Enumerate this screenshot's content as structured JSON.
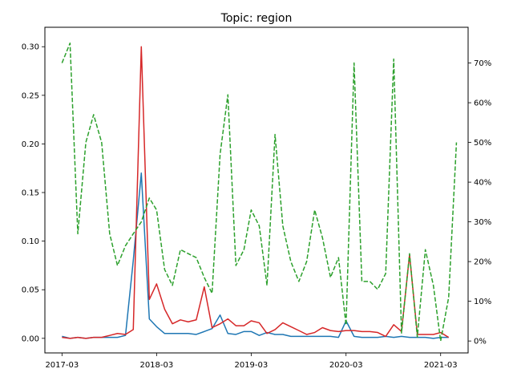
{
  "chart_data": {
    "type": "line",
    "title": "Topic: region",
    "xlabel": "",
    "ylabel_left": "",
    "ylabel_right": "",
    "grid": false,
    "legend": "none",
    "x_range": [
      "2016-12-25",
      "2021-06-15"
    ],
    "ylim_left": [
      -0.015,
      0.32
    ],
    "ylim_right": [
      -0.03,
      0.79
    ],
    "x_ticks": [
      {
        "date": "2017-03-01",
        "label": "2017-03"
      },
      {
        "date": "2018-03-01",
        "label": "2018-03"
      },
      {
        "date": "2019-03-01",
        "label": "2019-03"
      },
      {
        "date": "2020-03-01",
        "label": "2020-03"
      },
      {
        "date": "2021-03-01",
        "label": "2021-03"
      }
    ],
    "y_ticks_left": [
      {
        "value": 0.0,
        "label": "0.00"
      },
      {
        "value": 0.05,
        "label": "0.05"
      },
      {
        "value": 0.1,
        "label": "0.10"
      },
      {
        "value": 0.15,
        "label": "0.15"
      },
      {
        "value": 0.2,
        "label": "0.20"
      },
      {
        "value": 0.25,
        "label": "0.25"
      },
      {
        "value": 0.3,
        "label": "0.30"
      }
    ],
    "y_ticks_right": [
      {
        "value": 0.0,
        "label": "0%"
      },
      {
        "value": 0.1,
        "label": "10%"
      },
      {
        "value": 0.2,
        "label": "20%"
      },
      {
        "value": 0.3,
        "label": "30%"
      },
      {
        "value": 0.4,
        "label": "40%"
      },
      {
        "value": 0.5,
        "label": "50%"
      },
      {
        "value": 0.6,
        "label": "60%"
      },
      {
        "value": 0.7,
        "label": "70%"
      }
    ],
    "series": [
      {
        "axis": "left",
        "color": "#1f77b4",
        "style": "solid",
        "points": [
          [
            "2017-03-01",
            0.002
          ],
          [
            "2017-04-01",
            0.0
          ],
          [
            "2017-05-01",
            0.001
          ],
          [
            "2017-06-01",
            0.0
          ],
          [
            "2017-07-01",
            0.001
          ],
          [
            "2017-08-01",
            0.001
          ],
          [
            "2017-09-01",
            0.001
          ],
          [
            "2017-10-01",
            0.001
          ],
          [
            "2017-11-01",
            0.003
          ],
          [
            "2017-12-01",
            0.08
          ],
          [
            "2018-01-01",
            0.17
          ],
          [
            "2018-02-01",
            0.02
          ],
          [
            "2018-03-01",
            0.012
          ],
          [
            "2018-04-01",
            0.005
          ],
          [
            "2018-05-01",
            0.005
          ],
          [
            "2018-06-01",
            0.005
          ],
          [
            "2018-07-01",
            0.005
          ],
          [
            "2018-08-01",
            0.004
          ],
          [
            "2018-09-01",
            0.007
          ],
          [
            "2018-10-01",
            0.01
          ],
          [
            "2018-11-01",
            0.024
          ],
          [
            "2018-12-01",
            0.005
          ],
          [
            "2019-01-01",
            0.004
          ],
          [
            "2019-02-01",
            0.007
          ],
          [
            "2019-03-01",
            0.007
          ],
          [
            "2019-04-01",
            0.003
          ],
          [
            "2019-05-01",
            0.006
          ],
          [
            "2019-06-01",
            0.004
          ],
          [
            "2019-07-01",
            0.004
          ],
          [
            "2019-08-01",
            0.002
          ],
          [
            "2019-09-01",
            0.002
          ],
          [
            "2019-10-01",
            0.002
          ],
          [
            "2019-11-01",
            0.002
          ],
          [
            "2019-12-01",
            0.002
          ],
          [
            "2020-01-01",
            0.002
          ],
          [
            "2020-02-01",
            0.001
          ],
          [
            "2020-03-01",
            0.018
          ],
          [
            "2020-04-01",
            0.002
          ],
          [
            "2020-05-01",
            0.001
          ],
          [
            "2020-06-01",
            0.001
          ],
          [
            "2020-07-01",
            0.001
          ],
          [
            "2020-08-01",
            0.002
          ],
          [
            "2020-09-01",
            0.001
          ],
          [
            "2020-10-01",
            0.002
          ],
          [
            "2020-11-01",
            0.001
          ],
          [
            "2020-12-01",
            0.001
          ],
          [
            "2021-01-01",
            0.001
          ],
          [
            "2021-02-01",
            0.0
          ],
          [
            "2021-03-01",
            0.001
          ],
          [
            "2021-04-01",
            0.001
          ]
        ]
      },
      {
        "axis": "left",
        "color": "#d62728",
        "style": "solid",
        "points": [
          [
            "2017-03-01",
            0.001
          ],
          [
            "2017-04-01",
            0.0
          ],
          [
            "2017-05-01",
            0.001
          ],
          [
            "2017-06-01",
            0.0
          ],
          [
            "2017-07-01",
            0.001
          ],
          [
            "2017-08-01",
            0.001
          ],
          [
            "2017-09-01",
            0.003
          ],
          [
            "2017-10-01",
            0.005
          ],
          [
            "2017-11-01",
            0.004
          ],
          [
            "2017-12-01",
            0.009
          ],
          [
            "2018-01-01",
            0.3
          ],
          [
            "2018-02-01",
            0.04
          ],
          [
            "2018-03-01",
            0.056
          ],
          [
            "2018-04-01",
            0.03
          ],
          [
            "2018-05-01",
            0.015
          ],
          [
            "2018-06-01",
            0.019
          ],
          [
            "2018-07-01",
            0.017
          ],
          [
            "2018-08-01",
            0.019
          ],
          [
            "2018-09-01",
            0.053
          ],
          [
            "2018-10-01",
            0.011
          ],
          [
            "2018-11-01",
            0.015
          ],
          [
            "2018-12-01",
            0.02
          ],
          [
            "2019-01-01",
            0.013
          ],
          [
            "2019-02-01",
            0.013
          ],
          [
            "2019-03-01",
            0.018
          ],
          [
            "2019-04-01",
            0.016
          ],
          [
            "2019-05-01",
            0.005
          ],
          [
            "2019-06-01",
            0.009
          ],
          [
            "2019-07-01",
            0.016
          ],
          [
            "2019-08-01",
            0.012
          ],
          [
            "2019-09-01",
            0.008
          ],
          [
            "2019-10-01",
            0.004
          ],
          [
            "2019-11-01",
            0.006
          ],
          [
            "2019-12-01",
            0.011
          ],
          [
            "2020-01-01",
            0.008
          ],
          [
            "2020-02-01",
            0.007
          ],
          [
            "2020-03-01",
            0.008
          ],
          [
            "2020-04-01",
            0.008
          ],
          [
            "2020-05-01",
            0.007
          ],
          [
            "2020-06-01",
            0.007
          ],
          [
            "2020-07-01",
            0.006
          ],
          [
            "2020-08-01",
            0.002
          ],
          [
            "2020-09-01",
            0.014
          ],
          [
            "2020-10-01",
            0.007
          ],
          [
            "2020-11-01",
            0.086
          ],
          [
            "2020-12-01",
            0.004
          ],
          [
            "2021-01-01",
            0.004
          ],
          [
            "2021-02-01",
            0.004
          ],
          [
            "2021-03-01",
            0.006
          ],
          [
            "2021-04-01",
            0.001
          ]
        ]
      },
      {
        "axis": "right",
        "color": "#2ca02c",
        "style": "dashed",
        "points": [
          [
            "2017-03-01",
            0.7
          ],
          [
            "2017-04-01",
            0.75
          ],
          [
            "2017-05-01",
            0.27
          ],
          [
            "2017-06-01",
            0.5
          ],
          [
            "2017-07-01",
            0.57
          ],
          [
            "2017-08-01",
            0.5
          ],
          [
            "2017-09-01",
            0.27
          ],
          [
            "2017-10-01",
            0.19
          ],
          [
            "2017-11-01",
            0.24
          ],
          [
            "2017-12-01",
            0.27
          ],
          [
            "2018-01-01",
            0.3
          ],
          [
            "2018-02-01",
            0.36
          ],
          [
            "2018-03-01",
            0.33
          ],
          [
            "2018-04-01",
            0.18
          ],
          [
            "2018-05-01",
            0.14
          ],
          [
            "2018-06-01",
            0.23
          ],
          [
            "2018-07-01",
            0.22
          ],
          [
            "2018-08-01",
            0.21
          ],
          [
            "2018-09-01",
            0.16
          ],
          [
            "2018-10-01",
            0.12
          ],
          [
            "2018-11-01",
            0.47
          ],
          [
            "2018-12-01",
            0.62
          ],
          [
            "2019-01-01",
            0.19
          ],
          [
            "2019-02-01",
            0.23
          ],
          [
            "2019-03-01",
            0.33
          ],
          [
            "2019-04-01",
            0.29
          ],
          [
            "2019-05-01",
            0.14
          ],
          [
            "2019-06-01",
            0.52
          ],
          [
            "2019-07-01",
            0.29
          ],
          [
            "2019-08-01",
            0.2
          ],
          [
            "2019-09-01",
            0.15
          ],
          [
            "2019-10-01",
            0.2
          ],
          [
            "2019-11-01",
            0.33
          ],
          [
            "2019-12-01",
            0.26
          ],
          [
            "2020-01-01",
            0.16
          ],
          [
            "2020-02-01",
            0.21
          ],
          [
            "2020-03-01",
            0.04
          ],
          [
            "2020-04-01",
            0.7
          ],
          [
            "2020-05-01",
            0.15
          ],
          [
            "2020-06-01",
            0.15
          ],
          [
            "2020-07-01",
            0.13
          ],
          [
            "2020-08-01",
            0.17
          ],
          [
            "2020-09-01",
            0.71
          ],
          [
            "2020-10-01",
            0.02
          ],
          [
            "2020-11-01",
            0.22
          ],
          [
            "2020-12-01",
            0.01
          ],
          [
            "2021-01-01",
            0.23
          ],
          [
            "2021-02-01",
            0.14
          ],
          [
            "2021-03-01",
            0.0
          ],
          [
            "2021-04-01",
            0.11
          ],
          [
            "2021-05-01",
            0.5
          ]
        ]
      }
    ]
  }
}
